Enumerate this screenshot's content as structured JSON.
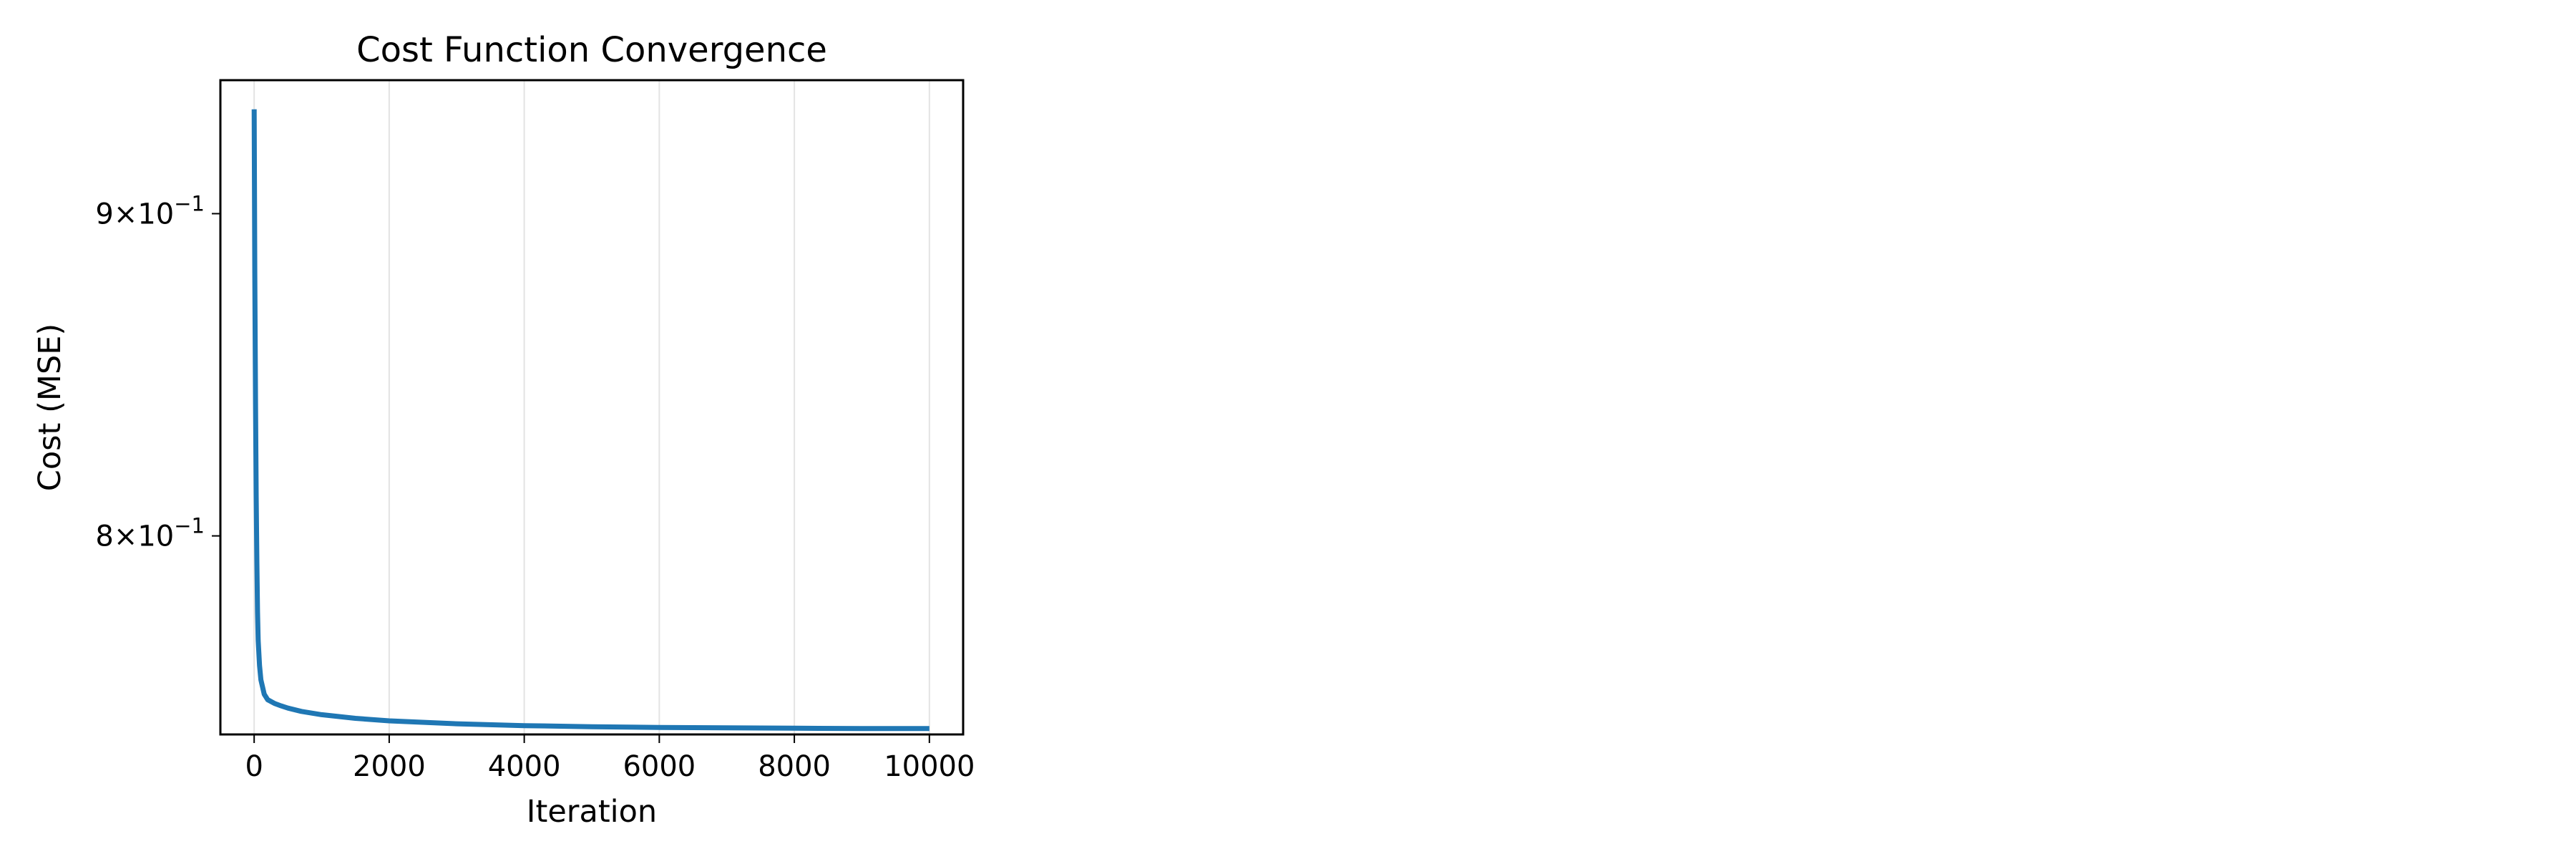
{
  "chart_data": {
    "type": "line",
    "title": "Cost Function Convergence",
    "xlabel": "Iteration",
    "ylabel": "Cost (MSE)",
    "xlim": [
      -500,
      10500
    ],
    "ylim": [
      0.744,
      0.945
    ],
    "yscale": "log",
    "grid": "x-axis vertical lines only",
    "legend": "none",
    "x_ticks": [
      {
        "value": 0,
        "label": "0"
      },
      {
        "value": 2000,
        "label": "2000"
      },
      {
        "value": 4000,
        "label": "4000"
      },
      {
        "value": 6000,
        "label": "6000"
      },
      {
        "value": 8000,
        "label": "8000"
      },
      {
        "value": 10000,
        "label": "10000"
      }
    ],
    "y_ticks": [
      {
        "value": 0.9,
        "mantissa": "9",
        "base": "10",
        "exponent": "−1"
      },
      {
        "value": 0.8,
        "mantissa": "8",
        "base": "10",
        "exponent": "−1"
      }
    ],
    "series": [
      {
        "color": "#1f77b4",
        "x": [
          0,
          10,
          20,
          30,
          40,
          50,
          60,
          80,
          100,
          150,
          200,
          300,
          400,
          500,
          700,
          1000,
          1500,
          2000,
          3000,
          4000,
          5000,
          6000,
          7000,
          8000,
          9000,
          10000
        ],
        "y": [
          0.935,
          0.88,
          0.84,
          0.812,
          0.792,
          0.778,
          0.77,
          0.763,
          0.759,
          0.755,
          0.7535,
          0.7525,
          0.7518,
          0.7512,
          0.7503,
          0.7494,
          0.7484,
          0.7477,
          0.7469,
          0.7464,
          0.7461,
          0.7459,
          0.7458,
          0.7457,
          0.7456,
          0.7456
        ]
      }
    ]
  }
}
